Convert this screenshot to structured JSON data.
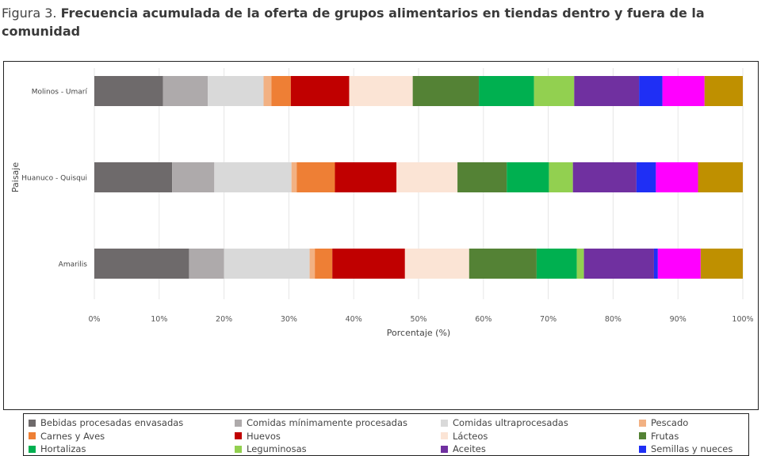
{
  "caption": {
    "lead": "Figura 3.",
    "title": "Frecuencia acumulada de la oferta de grupos alimentarios en tiendas dentro y fuera de la comunidad"
  },
  "chart_data": {
    "type": "bar",
    "orientation": "horizontal",
    "stacked": true,
    "xlabel": "Porcentaje (%)",
    "ylabel": "Paisaje",
    "xlim": [
      0,
      100
    ],
    "xticks": [
      "0%",
      "10%",
      "20%",
      "30%",
      "40%",
      "50%",
      "60%",
      "70%",
      "80%",
      "90%",
      "100%"
    ],
    "grid": true,
    "legend_position": "bottom",
    "categories": [
      "Molinos - Umarí",
      "Huanuco - Quisqui",
      "Amarilis"
    ],
    "series": [
      {
        "name": "Bebidas procesadas envasadas",
        "color": "#6e6a6b",
        "values": [
          10.6,
          12.0,
          14.6
        ]
      },
      {
        "name": "Comidas mínimamente procesadas",
        "color": "#aeaaab",
        "values": [
          6.9,
          6.5,
          5.4
        ]
      },
      {
        "name": "Comidas ultraprocesadas",
        "color": "#d9d9d9",
        "values": [
          8.6,
          11.9,
          13.2
        ]
      },
      {
        "name": "Pescado",
        "color": "#f2b183",
        "values": [
          1.2,
          0.8,
          0.8
        ]
      },
      {
        "name": "Carnes y Aves",
        "color": "#ee7f35",
        "values": [
          3.0,
          5.9,
          2.7
        ]
      },
      {
        "name": "Huevos",
        "color": "#c00000",
        "values": [
          9.0,
          9.5,
          11.2
        ]
      },
      {
        "name": "Lácteos",
        "color": "#fbe4d5",
        "values": [
          9.8,
          9.4,
          9.9
        ]
      },
      {
        "name": "Frutas",
        "color": "#548235",
        "values": [
          10.2,
          7.6,
          10.4
        ]
      },
      {
        "name": "Hortalizas",
        "color": "#00b050",
        "values": [
          8.5,
          6.5,
          6.2
        ]
      },
      {
        "name": "Leguminosas",
        "color": "#92d050",
        "values": [
          6.2,
          3.7,
          1.1
        ]
      },
      {
        "name": "Aceites",
        "color": "#7030a0",
        "values": [
          10.0,
          9.8,
          10.8
        ]
      },
      {
        "name": "Semillas y  nueces",
        "color": "#1f2ff5",
        "values": [
          3.6,
          3.0,
          0.6
        ]
      },
      {
        "name": "",
        "color": "#ff00ff",
        "values": [
          6.5,
          6.5,
          6.6
        ]
      },
      {
        "name": "",
        "color": "#bf9000",
        "values": [
          5.9,
          6.9,
          6.5
        ]
      }
    ]
  }
}
